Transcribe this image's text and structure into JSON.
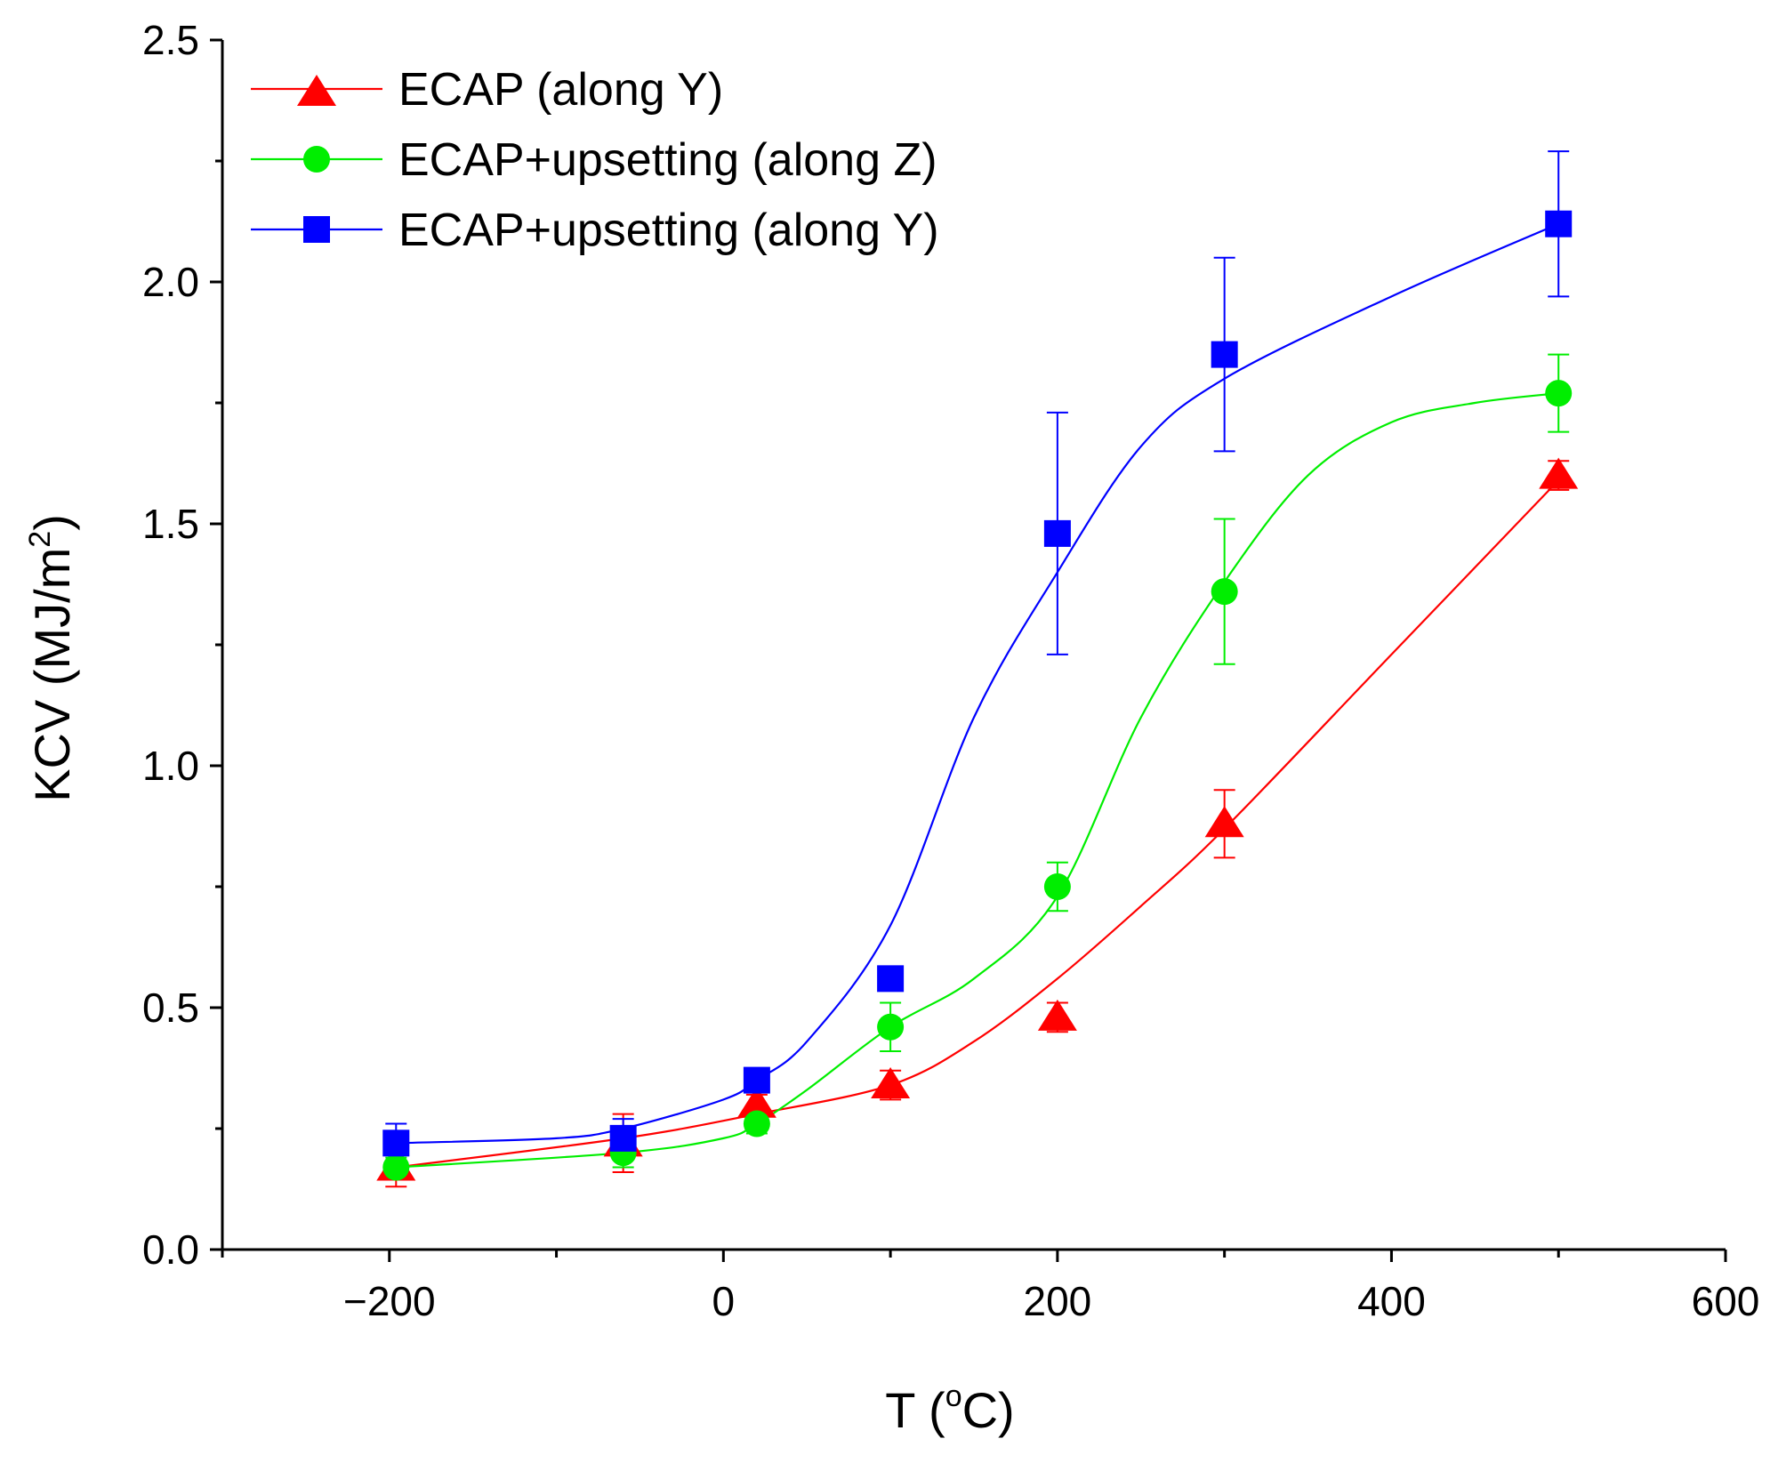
{
  "chart_data": {
    "type": "scatter",
    "title": "",
    "xlabel": {
      "main": "T (",
      "sup": "o",
      "rest": "C)"
    },
    "ylabel": {
      "main": "KCV (MJ/m",
      "sup": "2",
      "rest": ")"
    },
    "xlim": [
      -300,
      600
    ],
    "ylim": [
      0.0,
      2.5
    ],
    "xticks": [
      -200,
      0,
      200,
      400,
      600
    ],
    "xtick_labels": [
      "−200",
      "0",
      "200",
      "400",
      "600"
    ],
    "x_minor_ticks": [
      -300,
      -100,
      100,
      300,
      500
    ],
    "yticks": [
      0.0,
      0.5,
      1.0,
      1.5,
      2.0,
      2.5
    ],
    "ytick_labels": [
      "0.0",
      "0.5",
      "1.0",
      "1.5",
      "2.0",
      "2.5"
    ],
    "legend_position": "top-left",
    "grid": false,
    "series": [
      {
        "name": "ECAP (along Y)",
        "color": "#ff0000",
        "marker": "triangle",
        "x": [
          -196,
          -60,
          20,
          100,
          200,
          300,
          500
        ],
        "y": [
          0.17,
          0.22,
          0.3,
          0.34,
          0.48,
          0.88,
          1.6
        ],
        "yerr": [
          0.04,
          0.06,
          0.02,
          0.03,
          0.03,
          0.07,
          0.03
        ],
        "fit_x": [
          -196,
          -60,
          20,
          100,
          150,
          200,
          250,
          300,
          400,
          500
        ],
        "fit_y": [
          0.17,
          0.23,
          0.28,
          0.34,
          0.43,
          0.56,
          0.71,
          0.87,
          1.23,
          1.59
        ]
      },
      {
        "name": "ECAP+upsetting (along Z)",
        "color": "#00ee00",
        "marker": "circle",
        "x": [
          -196,
          -60,
          20,
          100,
          200,
          300,
          500
        ],
        "y": [
          0.17,
          0.2,
          0.26,
          0.46,
          0.75,
          1.36,
          1.77
        ],
        "yerr": [
          0.02,
          0.03,
          0.02,
          0.05,
          0.05,
          0.15,
          0.08
        ],
        "fit_x": [
          -196,
          -60,
          0,
          20,
          50,
          100,
          150,
          200,
          250,
          300,
          350,
          400,
          450,
          500
        ],
        "fit_y": [
          0.17,
          0.2,
          0.23,
          0.26,
          0.33,
          0.46,
          0.56,
          0.73,
          1.1,
          1.38,
          1.6,
          1.71,
          1.75,
          1.77
        ]
      },
      {
        "name": "ECAP+upsetting (along Y)",
        "color": "#0000ff",
        "marker": "square",
        "x": [
          -196,
          -60,
          20,
          100,
          200,
          300,
          500
        ],
        "y": [
          0.22,
          0.23,
          0.35,
          0.56,
          1.48,
          1.85,
          2.12
        ],
        "yerr": [
          0.04,
          0.04,
          0.02,
          0.02,
          0.25,
          0.2,
          0.15
        ],
        "fit_x": [
          -196,
          -100,
          -60,
          0,
          20,
          50,
          100,
          150,
          200,
          250,
          300,
          400,
          500
        ],
        "fit_y": [
          0.22,
          0.23,
          0.25,
          0.31,
          0.35,
          0.43,
          0.67,
          1.1,
          1.4,
          1.66,
          1.8,
          1.97,
          2.12
        ]
      }
    ]
  }
}
